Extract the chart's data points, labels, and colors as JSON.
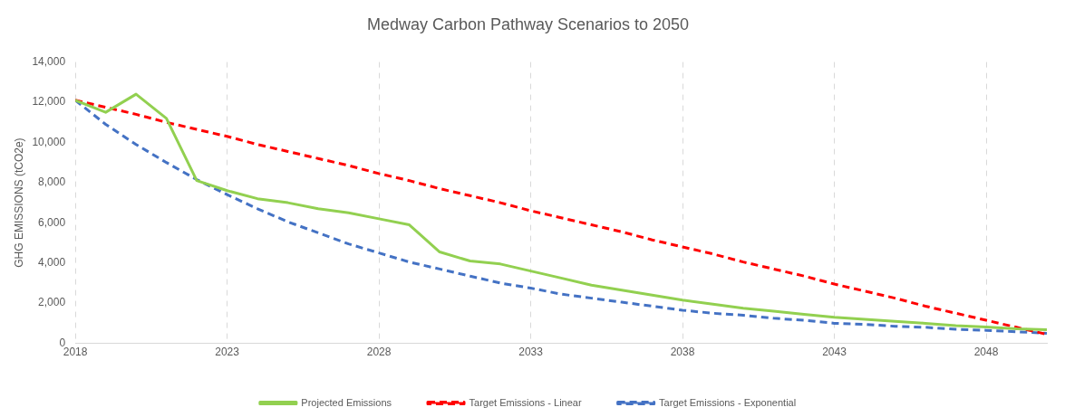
{
  "chart_data": {
    "type": "line",
    "title": "Medway Carbon Pathway Scenarios to 2050",
    "ylabel": "GHG EMISSIONS (tCO2e)",
    "x": [
      2018,
      2019,
      2020,
      2021,
      2022,
      2023,
      2024,
      2025,
      2026,
      2027,
      2028,
      2029,
      2030,
      2031,
      2032,
      2033,
      2034,
      2035,
      2036,
      2037,
      2038,
      2039,
      2040,
      2041,
      2042,
      2043,
      2044,
      2045,
      2046,
      2047,
      2048,
      2049,
      2050
    ],
    "series": [
      {
        "name": "Projected Emissions",
        "color": "#92d050",
        "line_style": "solid",
        "values": [
          12100,
          11500,
          12400,
          11200,
          8100,
          7600,
          7200,
          7000,
          6700,
          6500,
          6200,
          5900,
          4550,
          4100,
          3950,
          3600,
          3250,
          2900,
          2650,
          2400,
          2150,
          1950,
          1750,
          1600,
          1450,
          1300,
          1200,
          1100,
          1000,
          880,
          820,
          720,
          680
        ]
      },
      {
        "name": "Target Emissions - Linear",
        "color": "#ff0000",
        "line_style": "dashed",
        "values": [
          12100,
          11750,
          11400,
          11000,
          10650,
          10300,
          9900,
          9550,
          9200,
          8850,
          8450,
          8100,
          7700,
          7350,
          7000,
          6600,
          6250,
          5900,
          5550,
          5150,
          4800,
          4450,
          4050,
          3700,
          3350,
          2950,
          2600,
          2250,
          1850,
          1500,
          1150,
          800,
          450
        ]
      },
      {
        "name": "Target Emissions - Exponential",
        "color": "#4472c4",
        "line_style": "dashed",
        "values": [
          12100,
          10900,
          9900,
          9000,
          8150,
          7400,
          6700,
          6050,
          5500,
          4950,
          4500,
          4050,
          3700,
          3350,
          3000,
          2750,
          2450,
          2250,
          2050,
          1850,
          1650,
          1500,
          1400,
          1250,
          1150,
          1000,
          950,
          850,
          800,
          700,
          650,
          580,
          500
        ]
      }
    ],
    "xlim": [
      2018,
      2050
    ],
    "xticks": [
      2018,
      2023,
      2028,
      2033,
      2038,
      2043,
      2048
    ],
    "ylim": [
      0,
      14000
    ],
    "yticks": [
      0,
      {
        "value": 2000,
        "label": "2,000"
      },
      {
        "value": 4000,
        "label": "4,000"
      },
      {
        "value": 6000,
        "label": "6,000"
      },
      {
        "value": 8000,
        "label": "8,000"
      },
      {
        "value": 10000,
        "label": "10,000"
      },
      {
        "value": 12000,
        "label": "12,000"
      },
      {
        "value": 14000,
        "label": "14,000"
      }
    ],
    "grid": "x",
    "legend": "bottom",
    "marker": "none"
  }
}
